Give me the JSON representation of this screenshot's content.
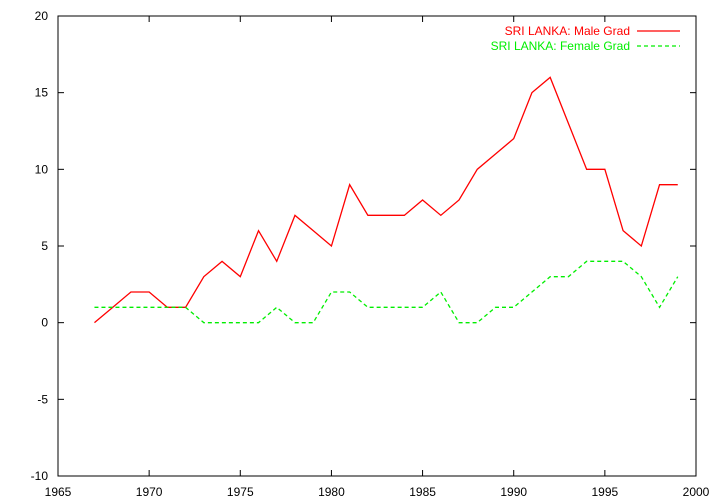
{
  "chart_data": {
    "type": "line",
    "title": "",
    "xlabel": "",
    "ylabel": "",
    "xlim": [
      1965,
      2000
    ],
    "ylim": [
      -10,
      20
    ],
    "xticks": [
      1965,
      1970,
      1975,
      1980,
      1985,
      1990,
      1995,
      2000
    ],
    "yticks": [
      -10,
      -5,
      0,
      5,
      10,
      15,
      20
    ],
    "grid": false,
    "legend_position": "top-right",
    "x": [
      1967,
      1968,
      1969,
      1970,
      1971,
      1972,
      1973,
      1974,
      1975,
      1976,
      1977,
      1978,
      1979,
      1980,
      1981,
      1982,
      1983,
      1984,
      1985,
      1986,
      1987,
      1988,
      1989,
      1990,
      1991,
      1992,
      1993,
      1994,
      1995,
      1996,
      1997,
      1998,
      1999
    ],
    "series": [
      {
        "name": "SRI LANKA: Male Grad",
        "color": "#ff0000",
        "dash": "solid",
        "values": [
          0,
          1,
          2,
          2,
          1,
          1,
          3,
          4,
          3,
          6,
          4,
          7,
          6,
          5,
          9,
          7,
          7,
          7,
          8,
          7,
          8,
          10,
          11,
          12,
          15,
          16,
          13,
          10,
          10,
          6,
          5,
          9,
          9
        ]
      },
      {
        "name": "SRI LANKA: Female Grad",
        "color": "#00ee00",
        "dash": "dashed",
        "values": [
          1,
          1,
          1,
          1,
          1,
          1,
          0,
          0,
          0,
          0,
          1,
          0,
          0,
          2,
          2,
          1,
          1,
          1,
          1,
          2,
          0,
          0,
          1,
          1,
          2,
          3,
          3,
          4,
          4,
          4,
          3,
          1,
          3
        ]
      }
    ]
  }
}
